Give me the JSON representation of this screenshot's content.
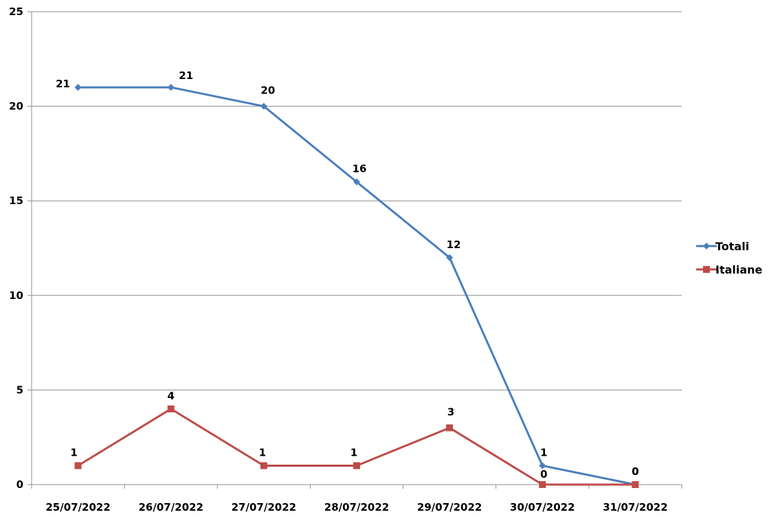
{
  "chart_data": {
    "type": "line",
    "title": "",
    "xlabel": "",
    "ylabel": "",
    "ylim": [
      0,
      25
    ],
    "yticks": [
      0,
      5,
      10,
      15,
      20,
      25
    ],
    "grid": "horizontal",
    "legend_position": "right",
    "categories": [
      "25/07/2022",
      "26/07/2022",
      "27/07/2022",
      "28/07/2022",
      "29/07/2022",
      "30/07/2022",
      "31/07/2022"
    ],
    "series": [
      {
        "name": "Totali",
        "values": [
          21,
          21,
          20,
          16,
          12,
          1,
          0
        ],
        "color": "#4a7ebb",
        "marker": "diamond"
      },
      {
        "name": "Italiane",
        "values": [
          1,
          4,
          1,
          1,
          3,
          0,
          0
        ],
        "color": "#be4b48",
        "marker": "square"
      }
    ]
  }
}
